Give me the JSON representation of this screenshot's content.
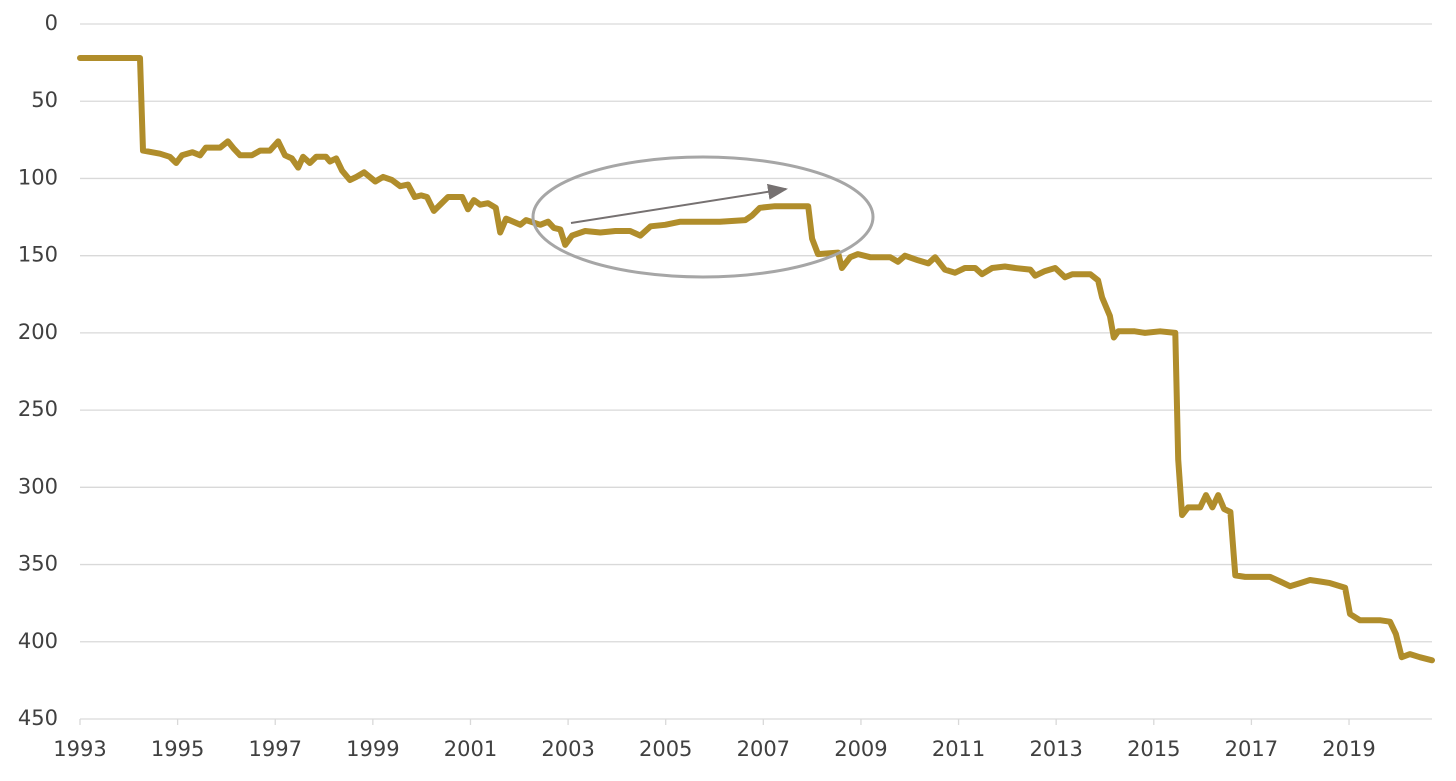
{
  "chart_data": {
    "type": "line",
    "color": "#b08d2b",
    "grid": true,
    "y_inverted": true,
    "xlim": [
      1993,
      2020.7
    ],
    "xticks": [
      1993,
      1995,
      1997,
      1999,
      2001,
      2003,
      2005,
      2007,
      2009,
      2011,
      2013,
      2015,
      2017,
      2019
    ],
    "ylim": [
      0,
      450
    ],
    "yticks": [
      0,
      50,
      100,
      150,
      200,
      250,
      300,
      350,
      400,
      450
    ],
    "x": [
      1993,
      1994.23,
      1994.29,
      1994.64,
      1994.84,
      1994.97,
      1995.09,
      1995.3,
      1995.46,
      1995.58,
      1995.87,
      1996.03,
      1996.16,
      1996.28,
      1996.52,
      1996.69,
      1996.89,
      1997.06,
      1997.2,
      1997.34,
      1997.47,
      1997.57,
      1997.71,
      1997.84,
      1998.04,
      1998.12,
      1998.25,
      1998.37,
      1998.53,
      1998.66,
      1998.82,
      1999.05,
      1999.21,
      1999.39,
      1999.56,
      1999.72,
      1999.86,
      1999.99,
      2000.11,
      2000.25,
      2000.38,
      2000.54,
      2000.83,
      2000.95,
      2001.07,
      2001.2,
      2001.36,
      2001.52,
      2001.61,
      2001.73,
      2002.02,
      2002.14,
      2002.43,
      2002.59,
      2002.71,
      2002.84,
      2002.94,
      2003.08,
      2003.35,
      2003.66,
      2003.97,
      2004.27,
      2004.48,
      2004.69,
      2004.99,
      2005.3,
      2005.7,
      2006.11,
      2006.63,
      2006.77,
      2006.93,
      2007.24,
      2007.92,
      2008.0,
      2008.12,
      2008.53,
      2008.61,
      2008.78,
      2008.94,
      2009.19,
      2009.39,
      2009.6,
      2009.76,
      2009.9,
      2010.17,
      2010.38,
      2010.52,
      2010.72,
      2010.93,
      2011.13,
      2011.34,
      2011.48,
      2011.69,
      2011.95,
      2012.16,
      2012.47,
      2012.57,
      2012.77,
      2012.98,
      2013.18,
      2013.33,
      2013.49,
      2013.7,
      2013.86,
      2013.94,
      2014.1,
      2014.18,
      2014.27,
      2014.61,
      2014.82,
      2015.13,
      2015.44,
      2015.5,
      2015.58,
      2015.7,
      2015.95,
      2016.07,
      2016.2,
      2016.32,
      2016.44,
      2016.57,
      2016.67,
      2016.87,
      2017.18,
      2017.38,
      2017.59,
      2017.79,
      2018.0,
      2018.2,
      2018.41,
      2018.61,
      2018.92,
      2019.02,
      2019.22,
      2019.63,
      2019.84,
      2019.96,
      2020.08,
      2020.25,
      2020.45,
      2020.7
    ],
    "values": [
      22,
      22,
      82,
      84,
      86,
      90,
      85,
      83,
      85,
      80,
      80,
      76,
      81,
      85,
      85,
      82,
      82,
      76,
      85,
      87,
      93,
      86,
      90,
      86,
      86,
      89,
      87,
      95,
      101,
      99,
      96,
      102,
      99,
      101,
      105,
      104,
      112,
      111,
      112,
      121,
      117,
      112,
      112,
      120,
      114,
      117,
      116,
      119,
      135,
      126,
      130,
      127,
      130,
      128,
      132,
      133,
      143,
      137,
      134,
      135,
      134,
      134,
      137,
      131,
      130,
      128,
      128,
      128,
      127,
      124,
      119,
      118,
      118,
      139,
      149,
      148,
      158,
      151,
      149,
      151,
      151,
      151,
      154,
      150,
      153,
      155,
      151,
      159,
      161,
      158,
      158,
      162,
      158,
      157,
      158,
      159,
      163,
      160,
      158,
      164,
      162,
      162,
      162,
      166,
      177,
      189,
      203,
      199,
      199,
      200,
      199,
      200,
      282,
      318,
      313,
      313,
      305,
      313,
      305,
      314,
      316,
      357,
      358,
      358,
      358,
      361,
      364,
      362,
      360,
      361,
      362,
      365,
      382,
      386,
      386,
      387,
      395,
      410,
      408,
      410,
      412
    ]
  }
}
